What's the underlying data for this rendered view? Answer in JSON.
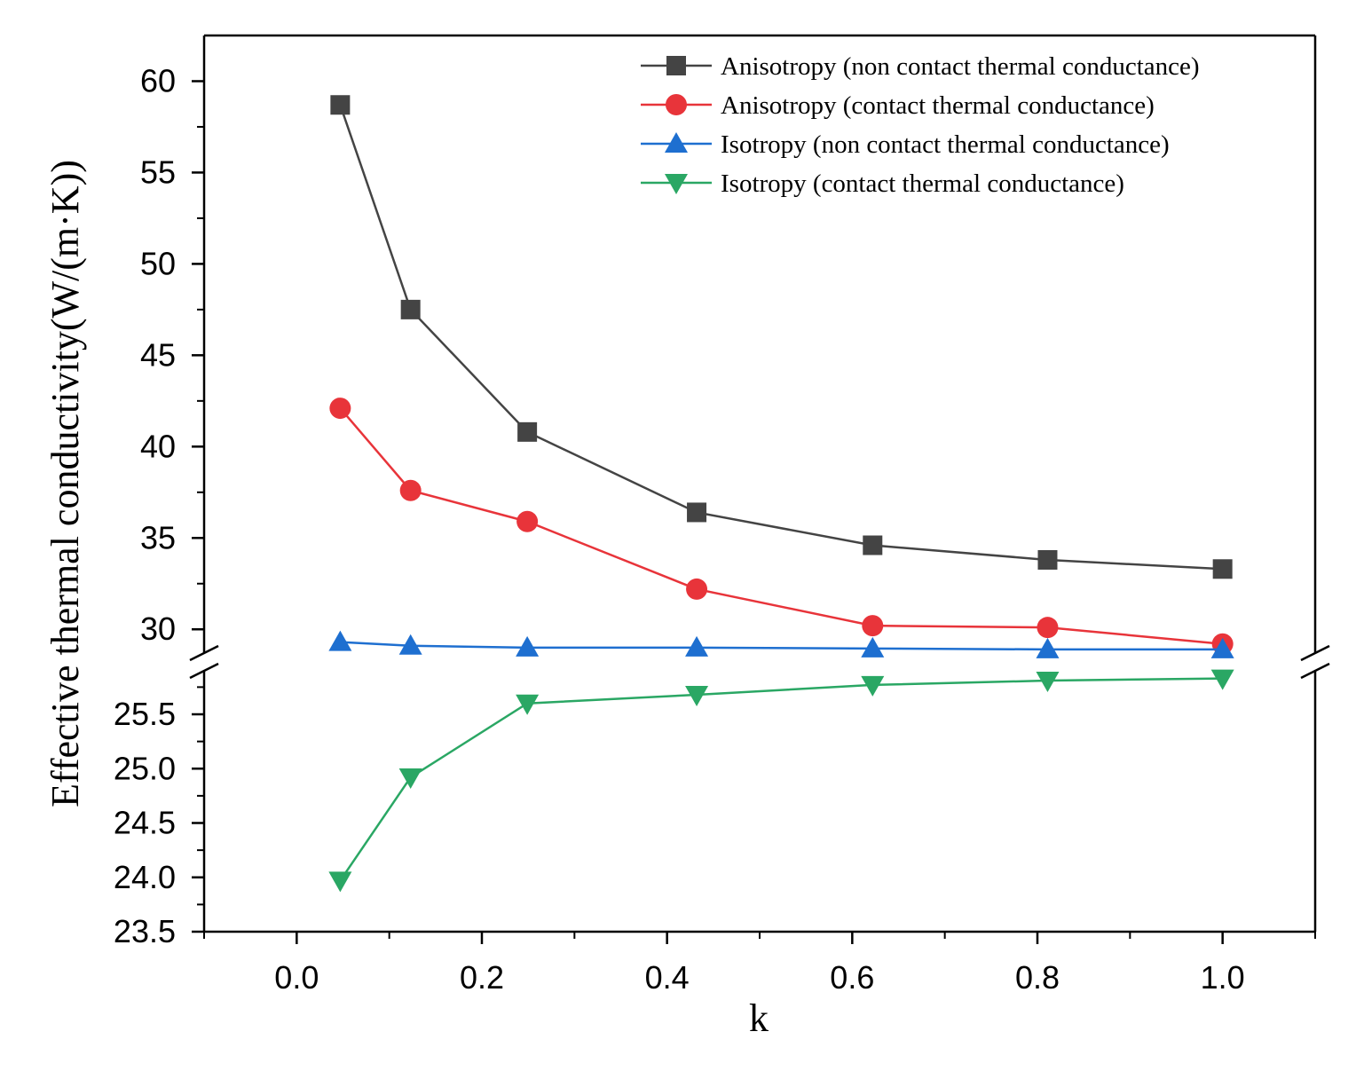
{
  "chart_data": {
    "type": "line",
    "title": "",
    "xlabel": "k",
    "ylabel": "Effective thermal conductivity(W/(m·K))",
    "x": [
      0.047,
      0.123,
      0.249,
      0.432,
      0.622,
      0.811,
      1.0
    ],
    "xlim": [
      -0.1,
      1.1
    ],
    "xticks": [
      "0.0",
      "0.2",
      "0.4",
      "0.6",
      "0.8",
      "1.0"
    ],
    "xtick_values": [
      0.0,
      0.2,
      0.4,
      0.6,
      0.8,
      1.0
    ],
    "axis_break": true,
    "y_lower_range": [
      23.5,
      25.9
    ],
    "y_upper_range": [
      28.7,
      62.5
    ],
    "yticks_lower": [
      "23.5",
      "24.0",
      "24.5",
      "25.0",
      "25.5"
    ],
    "ytick_values_lower": [
      23.5,
      24.0,
      24.5,
      25.0,
      25.5
    ],
    "yticks_upper": [
      "30",
      "35",
      "40",
      "45",
      "50",
      "55",
      "60"
    ],
    "ytick_values_upper": [
      30,
      35,
      40,
      45,
      50,
      55,
      60
    ],
    "legend_position": "top-right",
    "series": [
      {
        "name": "Anisotropy (non contact thermal conductance)",
        "color": "#444444",
        "marker": "square",
        "values": [
          58.7,
          47.5,
          40.8,
          36.4,
          34.6,
          33.8,
          33.3
        ]
      },
      {
        "name": "Anisotropy (contact thermal conductance)",
        "color": "#e8343a",
        "marker": "circle",
        "values": [
          42.1,
          37.6,
          35.9,
          32.2,
          30.2,
          30.1,
          29.2
        ]
      },
      {
        "name": "Isotropy (non contact thermal conductance)",
        "color": "#1e6fd0",
        "marker": "triangle-up",
        "values": [
          29.3,
          29.1,
          29.0,
          29.0,
          28.95,
          28.9,
          28.9
        ]
      },
      {
        "name": "Isotropy (contact thermal conductance)",
        "color": "#2aa764",
        "marker": "triangle-down",
        "values": [
          23.97,
          24.92,
          25.6,
          25.68,
          25.77,
          25.81,
          25.83
        ]
      }
    ]
  }
}
